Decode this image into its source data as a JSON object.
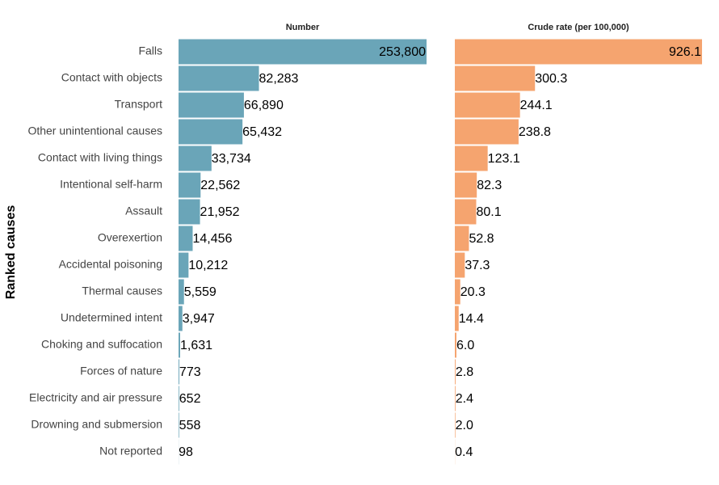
{
  "chart_data": [
    {
      "type": "bar",
      "title": "Number",
      "ylabel": "Ranked causes",
      "color": "#6aa5b8",
      "categories": [
        "Falls",
        "Contact with objects",
        "Transport",
        "Other unintentional causes",
        "Contact with living things",
        "Intentional self-harm",
        "Assault",
        "Overexertion",
        "Accidental poisoning",
        "Thermal causes",
        "Undetermined intent",
        "Choking and suffocation",
        "Forces of nature",
        "Electricity and air pressure",
        "Drowning and submersion",
        "Not reported"
      ],
      "values": [
        253800,
        82283,
        66890,
        65432,
        33734,
        22562,
        21952,
        14456,
        10212,
        5559,
        3947,
        1631,
        773,
        652,
        558,
        98
      ],
      "value_labels": [
        "253,800",
        "82,283",
        "66,890",
        "65,432",
        "33,734",
        "22,562",
        "21,952",
        "14,456",
        "10,212",
        "5,559",
        "3,947",
        "1,631",
        "773",
        "652",
        "558",
        "98"
      ]
    },
    {
      "type": "bar",
      "title": "Crude rate (per 100,000)",
      "color": "#f5a46f",
      "values": [
        926.1,
        300.3,
        244.1,
        238.8,
        123.1,
        82.3,
        80.1,
        52.8,
        37.3,
        20.3,
        14.4,
        6.0,
        2.8,
        2.4,
        2.0,
        0.4
      ],
      "value_labels": [
        "926.1",
        "300.3",
        "244.1",
        "238.8",
        "123.1",
        "82.3",
        "80.1",
        "52.8",
        "37.3",
        "20.3",
        "14.4",
        "6.0",
        "2.8",
        "2.4",
        "2.0",
        "0.4"
      ]
    }
  ]
}
